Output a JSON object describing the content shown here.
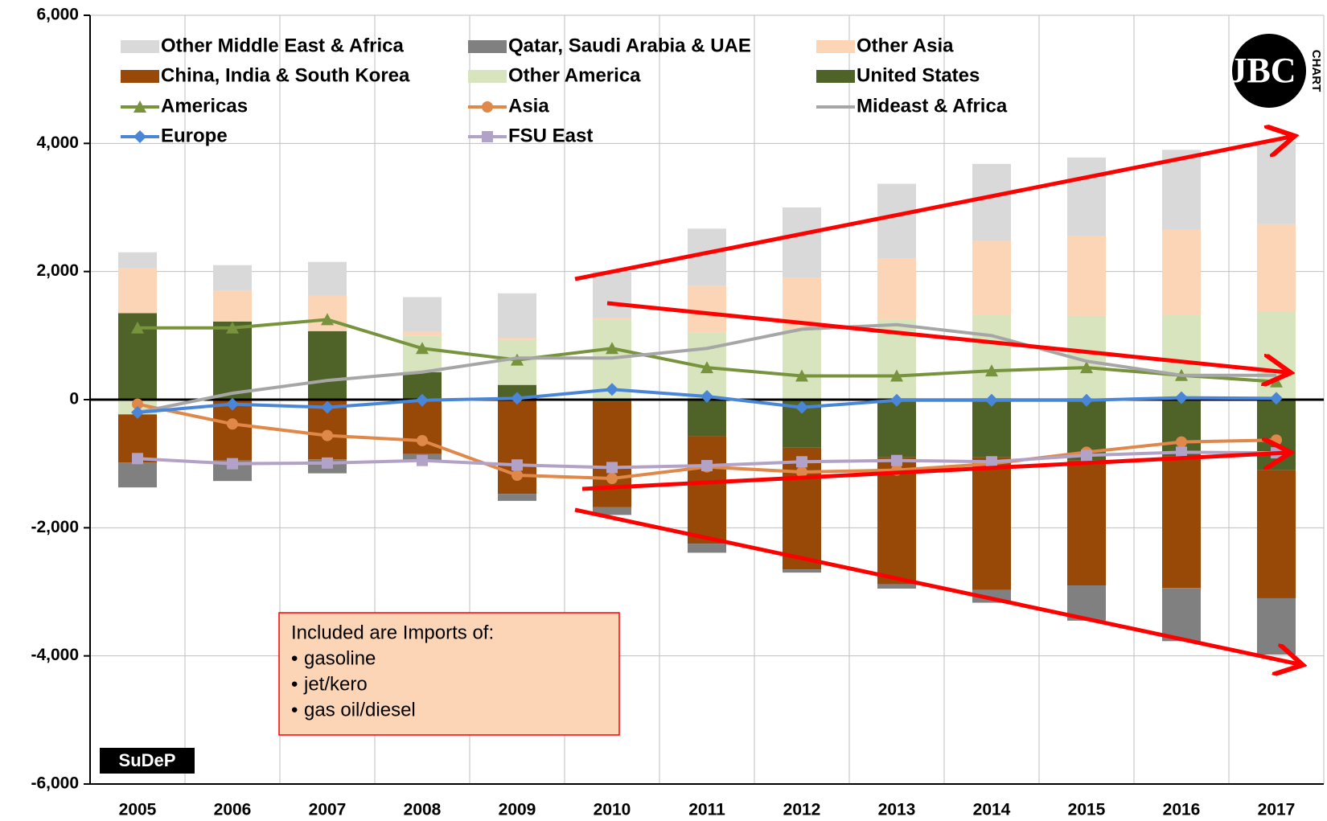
{
  "chart_data": {
    "type": "bar",
    "categories": [
      "2005",
      "2006",
      "2007",
      "2008",
      "2009",
      "2010",
      "2011",
      "2012",
      "2013",
      "2014",
      "2015",
      "2016",
      "2017"
    ],
    "ylim": [
      -6000,
      6000
    ],
    "yticks": [
      {
        "value": -6000,
        "label": "-6,000"
      },
      {
        "value": -4000,
        "label": "-4,000"
      },
      {
        "value": -2000,
        "label": "-2,000"
      },
      0,
      {
        "value": 2000,
        "label": "2,000"
      },
      {
        "value": 4000,
        "label": "4,000"
      },
      {
        "value": 6000,
        "label": "6,000"
      }
    ],
    "grid": true,
    "series": [
      {
        "name": "Other Middle East & Africa",
        "type": "bar",
        "color": "#d9d9d9",
        "values": [
          250,
          400,
          530,
          540,
          700,
          720,
          890,
          1100,
          1170,
          1200,
          1230,
          1250,
          1300
        ]
      },
      {
        "name": "Qatar, Saudi Arabia & UAE",
        "type": "bar",
        "color": "#808080",
        "values": [
          -390,
          -320,
          -220,
          -100,
          -110,
          -120,
          -140,
          -50,
          -70,
          -200,
          -550,
          -830,
          -880
        ]
      },
      {
        "name": "Other Asia",
        "type": "bar",
        "color": "#fbd5b5",
        "values": [
          700,
          480,
          550,
          60,
          30,
          30,
          730,
          800,
          950,
          1150,
          1240,
          1320,
          1360
        ]
      },
      {
        "name": "China, India & South Korea",
        "type": "bar",
        "color": "#984807",
        "values": [
          -750,
          -950,
          -930,
          -850,
          -1470,
          -1650,
          -1680,
          -1900,
          -1980,
          -2070,
          -1950,
          -2060,
          -2000
        ]
      },
      {
        "name": "Other America",
        "type": "bar",
        "color": "#d7e4bd",
        "values": [
          -230,
          0,
          0,
          570,
          700,
          1250,
          1050,
          1100,
          1250,
          1330,
          1310,
          1330,
          1380
        ]
      },
      {
        "name": "United States",
        "type": "bar",
        "color": "#4f6228",
        "values": [
          1350,
          1220,
          1070,
          430,
          230,
          -30,
          -570,
          -750,
          -900,
          -900,
          -950,
          -880,
          -1100
        ]
      },
      {
        "name": "Americas",
        "type": "line",
        "marker": "triangle",
        "color": "#77933c",
        "values": [
          1120,
          1120,
          1250,
          800,
          620,
          800,
          500,
          370,
          370,
          450,
          500,
          380,
          280
        ]
      },
      {
        "name": "Asia",
        "type": "line",
        "marker": "circle",
        "color": "#e0874a",
        "values": [
          -70,
          -380,
          -560,
          -640,
          -1180,
          -1230,
          -1050,
          -1130,
          -1100,
          -1000,
          -820,
          -660,
          -630
        ]
      },
      {
        "name": "Mideast & Africa",
        "type": "line",
        "marker": "none",
        "color": "#a6a6a6",
        "values": [
          -200,
          100,
          300,
          430,
          650,
          650,
          800,
          1100,
          1170,
          1000,
          600,
          380,
          380
        ]
      },
      {
        "name": "Europe",
        "type": "line",
        "marker": "diamond",
        "color": "#4a86d8",
        "values": [
          -200,
          -70,
          -120,
          -10,
          20,
          160,
          50,
          -120,
          -10,
          -10,
          -10,
          30,
          20
        ]
      },
      {
        "name": "FSU East",
        "type": "line",
        "marker": "square",
        "color": "#b3a2c7",
        "values": [
          -920,
          -1000,
          -990,
          -950,
          -1020,
          -1060,
          -1030,
          -970,
          -950,
          -970,
          -870,
          -820,
          -830
        ]
      }
    ],
    "annotation": {
      "title": "Included are Imports of:",
      "items": [
        "gasoline",
        "jet/kero",
        "gas oil/diesel"
      ]
    },
    "logo": {
      "letters": "JBC",
      "text": "CHART"
    },
    "source_logo": "SuDeP"
  }
}
